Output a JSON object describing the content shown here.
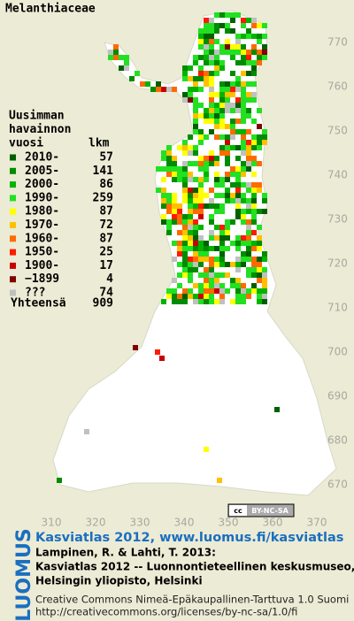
{
  "title": "Melanthiaceae",
  "legend": {
    "heading": [
      "Uusimman",
      "havainnon",
      "vuosi"
    ],
    "count_label": "lkm",
    "entries": [
      {
        "label": "2010-",
        "count": "57",
        "color": "#006000"
      },
      {
        "label": "2005-",
        "count": "141",
        "color": "#008c00"
      },
      {
        "label": "2000-",
        "count": "86",
        "color": "#00b400"
      },
      {
        "label": "1990-",
        "count": "259",
        "color": "#22e022"
      },
      {
        "label": "1980-",
        "count": "87",
        "color": "#ffff00"
      },
      {
        "label": "1970-",
        "count": "72",
        "color": "#ffc000"
      },
      {
        "label": "1960-",
        "count": "87",
        "color": "#ff6a00"
      },
      {
        "label": "1950-",
        "count": "25",
        "color": "#ff1a00"
      },
      {
        "label": "1900-",
        "count": "17",
        "color": "#c80000"
      },
      {
        "label": "−1899",
        "count": "4",
        "color": "#800000"
      },
      {
        "label": "???",
        "count": "74",
        "color": "#c0c0c0"
      }
    ],
    "total_label": "Yhteensä",
    "total": "909"
  },
  "y_ticks": [
    "770",
    "760",
    "750",
    "740",
    "730",
    "720",
    "710",
    "700",
    "690",
    "680",
    "670"
  ],
  "x_ticks": [
    "310",
    "320",
    "330",
    "340",
    "350",
    "360",
    "370"
  ],
  "badge": "BY-NC-SA",
  "side_logo": "LUOMUS",
  "footer": {
    "link": "Kasviatlas 2012, www.luomus.fi/kasviatlas",
    "citation": [
      "Lampinen, R. & Lahti, T. 2013:",
      "Kasviatlas 2012 -- Luonnontieteellinen keskusmuseo,",
      "Helsingin yliopisto, Helsinki"
    ],
    "license": [
      "Creative Commons Nimeä-Epäkaupallinen-Tarttuva 1.0 Suomi",
      "http://creativecommons.org/licenses/by-nc-sa/1.0/fi"
    ]
  }
}
